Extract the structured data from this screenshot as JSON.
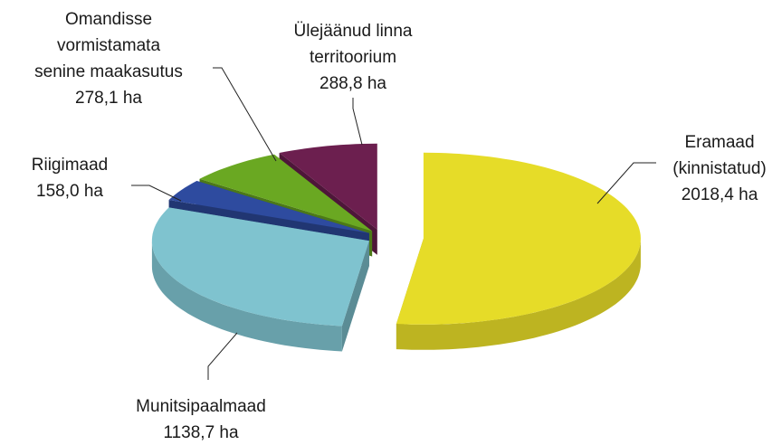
{
  "chart_data": {
    "type": "pie3d",
    "categories": [
      [
        "Eramaad",
        "(kinnistatud)"
      ],
      [
        "Munitsipaalmaad"
      ],
      [
        "Riigimaad"
      ],
      [
        "Omandisse",
        "vormistamata",
        "senine maakasutus"
      ],
      [
        "Ülejäänud linna",
        "territoorium"
      ]
    ],
    "values": [
      2018.4,
      1138.7,
      158.0,
      278.1,
      288.8
    ],
    "value_labels": [
      "2018,4 ha",
      "1138,7 ha",
      "158,0 ha",
      "278,1 ha",
      "288,8 ha"
    ],
    "colors": [
      "#e6dc28",
      "#7fc3cf",
      "#2e4b9f",
      "#6aa822",
      "#6c1f4f"
    ]
  }
}
